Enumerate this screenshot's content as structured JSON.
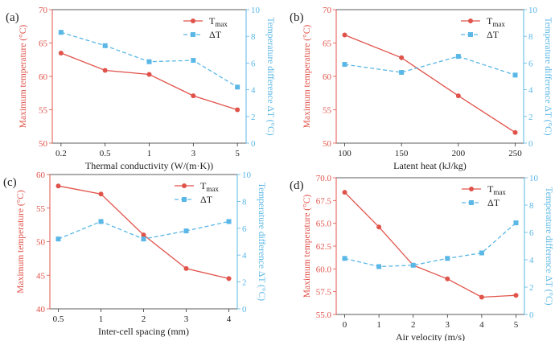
{
  "colors": {
    "red": "#e0534a",
    "blue": "#5ab7e6",
    "axis": "#333333"
  },
  "legend": {
    "tmax_main": "T",
    "tmax_sub": "max",
    "delta": "ΔT"
  },
  "chart_data": [
    {
      "panel": "(a)",
      "type": "line",
      "xlabel": "Thermal conductivity (W/(m·K))",
      "ylabel_left": "Maximum temperature (°C)",
      "ylabel_right": "Temperature difference ΔT (°C)",
      "categories": [
        "0.2",
        "0.5",
        "1",
        "3",
        "5"
      ],
      "ylim_left": [
        50,
        70
      ],
      "yticks_left": [
        "50",
        "55",
        "60",
        "65",
        "70"
      ],
      "ylim_right": [
        0,
        10
      ],
      "yticks_right": [
        "0",
        "2",
        "4",
        "6",
        "8",
        "10"
      ],
      "series": [
        {
          "name": "Tmax",
          "axis": "left",
          "values": [
            63.5,
            60.9,
            60.3,
            57.1,
            55.0
          ]
        },
        {
          "name": "ΔT",
          "axis": "right",
          "values": [
            8.3,
            7.3,
            6.1,
            6.2,
            4.2
          ]
        }
      ]
    },
    {
      "panel": "(b)",
      "type": "line",
      "xlabel": "Latent heat (kJ/kg)",
      "ylabel_left": "Maximum temperature (°C)",
      "ylabel_right": "Temperature difference ΔT (°C)",
      "categories": [
        "100",
        "150",
        "200",
        "250"
      ],
      "ylim_left": [
        50,
        70
      ],
      "yticks_left": [
        "50",
        "55",
        "60",
        "65",
        "70"
      ],
      "ylim_right": [
        0,
        10
      ],
      "yticks_right": [
        "0",
        "2",
        "4",
        "6",
        "8",
        "10"
      ],
      "series": [
        {
          "name": "Tmax",
          "axis": "left",
          "values": [
            66.2,
            62.8,
            57.1,
            51.6
          ]
        },
        {
          "name": "ΔT",
          "axis": "right",
          "values": [
            5.9,
            5.3,
            6.5,
            5.1
          ]
        }
      ]
    },
    {
      "panel": "(c)",
      "type": "line",
      "xlabel": "Inter-cell spacing (mm)",
      "ylabel_left": "Maximum temperature (°C)",
      "ylabel_right": "Temperature difference ΔT (°C)",
      "categories": [
        "0.5",
        "1",
        "2",
        "3",
        "4"
      ],
      "ylim_left": [
        40,
        60
      ],
      "yticks_left": [
        "40",
        "45",
        "50",
        "55",
        "60"
      ],
      "ylim_right": [
        0,
        10
      ],
      "yticks_right": [
        "0",
        "2",
        "4",
        "6",
        "8",
        "10"
      ],
      "series": [
        {
          "name": "Tmax",
          "axis": "left",
          "values": [
            58.3,
            57.1,
            51.0,
            46.0,
            44.5
          ]
        },
        {
          "name": "ΔT",
          "axis": "right",
          "values": [
            5.2,
            6.5,
            5.2,
            5.8,
            6.5
          ]
        }
      ]
    },
    {
      "panel": "(d)",
      "type": "line",
      "xlabel": "Air velocity (m/s)",
      "ylabel_left": "Maximum temperature (°C)",
      "ylabel_right": "Temperature difference ΔT (°C)",
      "categories": [
        "0",
        "1",
        "2",
        "3",
        "4",
        "5"
      ],
      "ylim_left": [
        55,
        70
      ],
      "yticks_left": [
        "55.0",
        "57.5",
        "60.0",
        "62.5",
        "65.0",
        "67.5",
        "70.0"
      ],
      "ylim_right": [
        0,
        10
      ],
      "yticks_right": [
        "0",
        "2",
        "4",
        "6",
        "8",
        "10"
      ],
      "series": [
        {
          "name": "Tmax",
          "axis": "left",
          "values": [
            68.4,
            64.6,
            60.4,
            58.9,
            56.9,
            57.1
          ]
        },
        {
          "name": "ΔT",
          "axis": "right",
          "values": [
            4.1,
            3.5,
            3.6,
            4.1,
            4.5,
            6.7
          ]
        }
      ]
    }
  ]
}
